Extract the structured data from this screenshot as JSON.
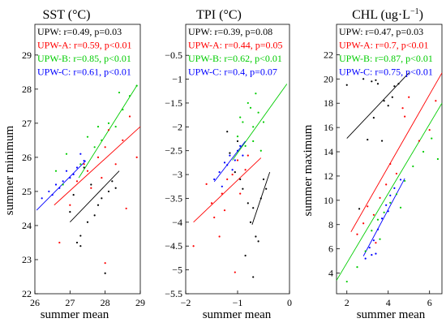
{
  "colors": {
    "UPW": "#000000",
    "UPW-A": "#ff0000",
    "UPW-B": "#00cc00",
    "UPW-C": "#0000ff"
  },
  "chart_data": [
    {
      "type": "scatter",
      "title": "SST (°C)",
      "xlabel": "summer mean",
      "ylabel": "summer minimum",
      "xlim": [
        26,
        29
      ],
      "ylim": [
        22,
        29.9
      ],
      "xticks": [
        26,
        27,
        28,
        29
      ],
      "yticks": [
        22,
        23,
        24,
        25,
        26,
        27,
        28,
        29
      ],
      "xtick_labels": [
        "26",
        "27",
        "28",
        "29"
      ],
      "ytick_labels": [
        "22",
        "23",
        "24",
        "25",
        "26",
        "27",
        "28",
        "29"
      ],
      "grid": false,
      "stats": [
        {
          "group": "UPW",
          "text": "UPW: r=0.49, p=0.03"
        },
        {
          "group": "UPW-A",
          "text": "UPW-A: r=0.59, p<0.01"
        },
        {
          "group": "UPW-B",
          "text": "UPW-B: r=0.85, p<0.01"
        },
        {
          "group": "UPW-C",
          "text": "UPW-C: r=0.61, p<0.01"
        }
      ],
      "fit_lines": [
        {
          "group": "UPW",
          "x": [
            27.0,
            28.4
          ],
          "y": [
            24.1,
            25.6
          ]
        },
        {
          "group": "UPW-A",
          "x": [
            26.55,
            29.0
          ],
          "y": [
            24.6,
            26.9
          ]
        },
        {
          "group": "UPW-B",
          "x": [
            27.25,
            28.9
          ],
          "y": [
            25.4,
            28.1
          ]
        },
        {
          "group": "UPW-C",
          "x": [
            26.05,
            27.45
          ],
          "y": [
            24.45,
            25.9
          ]
        }
      ],
      "series": [
        {
          "group": "UPW",
          "points": [
            [
              27.0,
              24.4
            ],
            [
              27.2,
              23.5
            ],
            [
              27.3,
              23.7
            ],
            [
              27.5,
              24.1
            ],
            [
              27.7,
              24.3
            ],
            [
              27.9,
              24.8
            ],
            [
              28.0,
              22.6
            ],
            [
              28.1,
              25.0
            ],
            [
              28.3,
              25.1
            ],
            [
              27.6,
              25.2
            ],
            [
              27.4,
              25.7
            ],
            [
              27.1,
              24.9
            ],
            [
              28.2,
              25.3
            ],
            [
              27.8,
              24.6
            ],
            [
              27.3,
              23.4
            ]
          ]
        },
        {
          "group": "UPW-A",
          "points": [
            [
              26.7,
              23.5
            ],
            [
              27.0,
              24.6
            ],
            [
              27.2,
              25.3
            ],
            [
              27.4,
              25.8
            ],
            [
              27.6,
              25.1
            ],
            [
              27.8,
              26.0
            ],
            [
              28.0,
              26.3
            ],
            [
              28.1,
              26.8
            ],
            [
              28.3,
              25.8
            ],
            [
              28.5,
              26.5
            ],
            [
              28.7,
              27.2
            ],
            [
              28.9,
              26.0
            ],
            [
              28.0,
              22.9
            ],
            [
              27.9,
              25.4
            ],
            [
              28.6,
              24.5
            ],
            [
              27.5,
              25.6
            ]
          ]
        },
        {
          "group": "UPW-B",
          "points": [
            [
              26.6,
              25.6
            ],
            [
              26.9,
              26.1
            ],
            [
              27.3,
              25.8
            ],
            [
              27.5,
              26.6
            ],
            [
              27.7,
              26.3
            ],
            [
              27.9,
              26.5
            ],
            [
              28.1,
              27.0
            ],
            [
              28.3,
              26.9
            ],
            [
              28.5,
              27.4
            ],
            [
              28.7,
              27.8
            ],
            [
              28.9,
              28.1
            ],
            [
              27.8,
              26.9
            ],
            [
              28.4,
              27.9
            ],
            [
              26.8,
              25.2
            ]
          ]
        },
        {
          "group": "UPW-C",
          "points": [
            [
              26.2,
              24.8
            ],
            [
              26.4,
              25.0
            ],
            [
              26.6,
              25.2
            ],
            [
              26.8,
              25.3
            ],
            [
              27.0,
              25.4
            ],
            [
              27.2,
              25.7
            ],
            [
              27.3,
              26.1
            ],
            [
              27.4,
              25.9
            ],
            [
              26.5,
              24.9
            ],
            [
              27.1,
              25.5
            ],
            [
              26.9,
              25.6
            ],
            [
              26.7,
              25.1
            ]
          ]
        }
      ]
    },
    {
      "type": "scatter",
      "title": "TPI (°C)",
      "xlabel": "summer mean",
      "ylabel": "",
      "xlim": [
        -2,
        0
      ],
      "ylim": [
        -5.5,
        0.15
      ],
      "xticks": [
        -2,
        -1,
        0
      ],
      "yticks": [
        -5.5,
        -5,
        -4.5,
        -4,
        -3.5,
        -3,
        -2.5,
        -2,
        -1.5,
        -1,
        -0.5
      ],
      "xtick_labels": [
        "−2",
        "−1",
        "0"
      ],
      "ytick_labels": [
        "−5.5",
        "−5",
        "−4.5",
        "−4",
        "−3.5",
        "−3",
        "−2.5",
        "−2",
        "−1.5",
        "−1",
        "−0.5"
      ],
      "grid": false,
      "stats": [
        {
          "group": "UPW",
          "text": "UPW: r=0.39, p=0.08"
        },
        {
          "group": "UPW-A",
          "text": "UPW-A: r=0.44, p=0.05"
        },
        {
          "group": "UPW-B",
          "text": "UPW-B: r=0.62, p<0.01"
        },
        {
          "group": "UPW-C",
          "text": "UPW-C: r=0.4, p=0.07"
        }
      ],
      "fit_lines": [
        {
          "group": "UPW",
          "x": [
            -0.72,
            -0.38
          ],
          "y": [
            -4.05,
            -2.95
          ]
        },
        {
          "group": "UPW-A",
          "x": [
            -1.85,
            -0.55
          ],
          "y": [
            -4.0,
            -2.65
          ]
        },
        {
          "group": "UPW-B",
          "x": [
            -1.1,
            -0.05
          ],
          "y": [
            -2.7,
            -1.1
          ]
        },
        {
          "group": "UPW-C",
          "x": [
            -1.45,
            -0.85
          ],
          "y": [
            -3.15,
            -2.3
          ]
        }
      ],
      "series": [
        {
          "group": "UPW",
          "points": [
            [
              -1.15,
              -2.55
            ],
            [
              -1.05,
              -2.95
            ],
            [
              -0.95,
              -3.1
            ],
            [
              -0.9,
              -3.3
            ],
            [
              -0.8,
              -3.6
            ],
            [
              -0.75,
              -4.0
            ],
            [
              -0.7,
              -3.7
            ],
            [
              -0.65,
              -4.3
            ],
            [
              -0.6,
              -4.4
            ],
            [
              -0.55,
              -3.5
            ],
            [
              -0.5,
              -3.1
            ],
            [
              -0.45,
              -3.3
            ],
            [
              -0.85,
              -4.7
            ],
            [
              -1.2,
              -2.1
            ],
            [
              -0.7,
              -5.15
            ],
            [
              -1.0,
              -2.3
            ]
          ]
        },
        {
          "group": "UPW-A",
          "points": [
            [
              -1.85,
              -4.5
            ],
            [
              -1.6,
              -3.2
            ],
            [
              -1.5,
              -3.6
            ],
            [
              -1.45,
              -3.9
            ],
            [
              -1.35,
              -4.3
            ],
            [
              -1.3,
              -3.4
            ],
            [
              -1.2,
              -3.1
            ],
            [
              -1.1,
              -3.0
            ],
            [
              -1.0,
              -2.7
            ],
            [
              -0.95,
              -3.4
            ],
            [
              -0.85,
              -2.9
            ],
            [
              -0.8,
              -2.6
            ],
            [
              -1.05,
              -5.05
            ],
            [
              -1.25,
              -3.75
            ]
          ]
        },
        {
          "group": "UPW-B",
          "points": [
            [
              -1.0,
              -2.2
            ],
            [
              -0.9,
              -1.9
            ],
            [
              -0.85,
              -2.4
            ],
            [
              -0.8,
              -1.5
            ],
            [
              -0.75,
              -1.6
            ],
            [
              -0.7,
              -2.0
            ],
            [
              -0.65,
              -1.3
            ],
            [
              -0.6,
              -1.7
            ],
            [
              -0.55,
              -2.5
            ],
            [
              -0.5,
              -1.9
            ],
            [
              -0.95,
              -1.8
            ],
            [
              -0.7,
              -2.3
            ]
          ]
        },
        {
          "group": "UPW-C",
          "points": [
            [
              -1.45,
              -3.1
            ],
            [
              -1.35,
              -2.95
            ],
            [
              -1.3,
              -3.25
            ],
            [
              -1.2,
              -2.8
            ],
            [
              -1.15,
              -2.6
            ],
            [
              -1.05,
              -2.7
            ],
            [
              -1.0,
              -2.5
            ],
            [
              -0.95,
              -2.4
            ],
            [
              -1.1,
              -2.9
            ],
            [
              -0.9,
              -2.6
            ],
            [
              -1.25,
              -2.75
            ]
          ]
        }
      ]
    },
    {
      "type": "scatter",
      "title": "CHL (ug·L−1)",
      "title_main": "CHL (ug·L",
      "title_sup": "−1",
      "title_end": ")",
      "xlabel": "summer mean",
      "ylabel": "summer maximum",
      "xlim": [
        1.5,
        6.6
      ],
      "ylim": [
        2.3,
        24.5
      ],
      "xticks": [
        2,
        4,
        6
      ],
      "yticks": [
        4,
        6,
        8,
        10,
        12,
        14,
        16,
        18,
        20,
        22
      ],
      "xtick_labels": [
        "2",
        "4",
        "6"
      ],
      "ytick_labels": [
        "4",
        "6",
        "8",
        "10",
        "12",
        "14",
        "16",
        "18",
        "20",
        "22"
      ],
      "grid": false,
      "stats": [
        {
          "group": "UPW",
          "text": "UPW: r=0.47, p=0.03"
        },
        {
          "group": "UPW-A",
          "text": "UPW-A: r=0.7, p<0.01"
        },
        {
          "group": "UPW-B",
          "text": "UPW-B: r=0.87, p<0.01"
        },
        {
          "group": "UPW-C",
          "text": "UPW-C: r=0.75, p<0.01"
        }
      ],
      "fit_lines": [
        {
          "group": "UPW",
          "x": [
            2.0,
            5.0
          ],
          "y": [
            15.1,
            20.5
          ]
        },
        {
          "group": "UPW-A",
          "x": [
            2.2,
            6.6
          ],
          "y": [
            7.4,
            20.5
          ]
        },
        {
          "group": "UPW-B",
          "x": [
            1.5,
            6.6
          ],
          "y": [
            3.4,
            18.0
          ]
        },
        {
          "group": "UPW-C",
          "x": [
            2.8,
            4.8
          ],
          "y": [
            5.4,
            11.8
          ]
        }
      ],
      "series": [
        {
          "group": "UPW",
          "points": [
            [
              2.0,
              19.5
            ],
            [
              2.6,
              9.3
            ],
            [
              3.0,
              15.0
            ],
            [
              3.2,
              19.8
            ],
            [
              3.5,
              19.6
            ],
            [
              3.4,
              19.9
            ],
            [
              3.8,
              18.2
            ],
            [
              4.0,
              17.8
            ],
            [
              4.2,
              18.5
            ],
            [
              4.5,
              19.6
            ],
            [
              4.3,
              19.4
            ],
            [
              3.3,
              16.8
            ],
            [
              2.8,
              20.0
            ],
            [
              3.7,
              14.9
            ]
          ]
        },
        {
          "group": "UPW-A",
          "points": [
            [
              2.5,
              7.2
            ],
            [
              2.8,
              8.1
            ],
            [
              3.0,
              9.5
            ],
            [
              3.3,
              8.8
            ],
            [
              3.6,
              10.2
            ],
            [
              3.9,
              11.3
            ],
            [
              4.1,
              13.0
            ],
            [
              4.4,
              12.2
            ],
            [
              4.7,
              17.6
            ],
            [
              5.0,
              18.5
            ],
            [
              5.5,
              14.9
            ],
            [
              6.0,
              15.8
            ],
            [
              6.3,
              18.2
            ],
            [
              3.4,
              6.5
            ],
            [
              4.8,
              16.9
            ]
          ]
        },
        {
          "group": "UPW-B",
          "points": [
            [
              2.0,
              3.3
            ],
            [
              2.5,
              4.5
            ],
            [
              2.9,
              5.8
            ],
            [
              3.2,
              7.5
            ],
            [
              3.5,
              8.4
            ],
            [
              3.8,
              9.0
            ],
            [
              4.1,
              9.8
            ],
            [
              4.4,
              10.5
            ],
            [
              4.8,
              11.6
            ],
            [
              5.2,
              12.8
            ],
            [
              5.7,
              14.0
            ],
            [
              6.1,
              15.1
            ],
            [
              6.4,
              13.4
            ],
            [
              3.6,
              6.8
            ],
            [
              4.6,
              9.4
            ]
          ]
        },
        {
          "group": "UPW-C",
          "points": [
            [
              2.9,
              5.2
            ],
            [
              3.1,
              6.1
            ],
            [
              3.3,
              6.7
            ],
            [
              3.5,
              7.6
            ],
            [
              3.7,
              8.5
            ],
            [
              3.9,
              9.6
            ],
            [
              4.1,
              10.4
            ],
            [
              4.3,
              11.0
            ],
            [
              4.6,
              11.7
            ],
            [
              3.4,
              5.6
            ],
            [
              4.0,
              9.1
            ],
            [
              3.2,
              5.5
            ]
          ]
        }
      ]
    }
  ]
}
